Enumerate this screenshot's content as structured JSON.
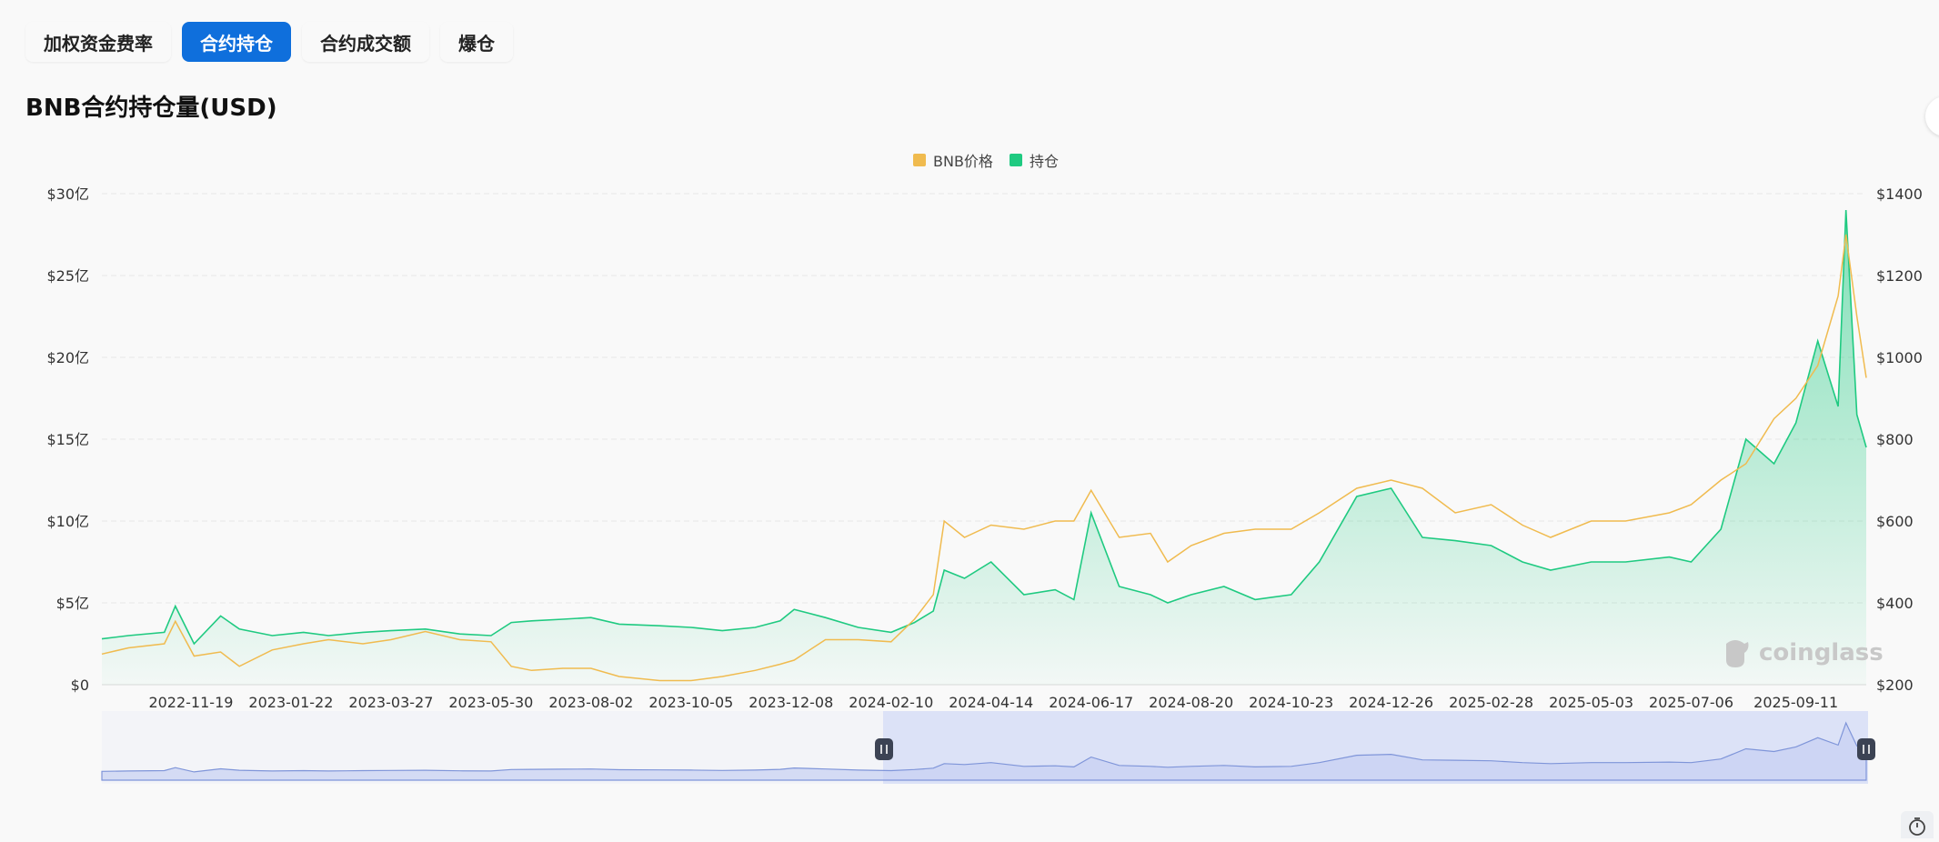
{
  "tabs": [
    {
      "label": "加权资金费率",
      "active": false
    },
    {
      "label": "合约持仓",
      "active": true
    },
    {
      "label": "合约成交额",
      "active": false
    },
    {
      "label": "爆仓",
      "active": false
    }
  ],
  "watermark": "coinglass",
  "colors": {
    "accent": "#0f6fdc",
    "price": "#f0bb4f",
    "oi": "#1fca81",
    "navigator": "#7f95d9"
  },
  "icons": [
    "coinglass-logo-icon",
    "pause-handle-icon",
    "timer-icon"
  ],
  "chart_data": {
    "type": "line",
    "title": "BNB合约持仓量(USD)",
    "legend": "top-center",
    "grid": true,
    "x_ticks": [
      "2022-11-19",
      "2023-01-22",
      "2023-03-27",
      "2023-05-30",
      "2023-08-02",
      "2023-10-05",
      "2023-12-08",
      "2024-02-10",
      "2024-04-14",
      "2024-06-17",
      "2024-08-20",
      "2024-10-23",
      "2024-12-26",
      "2025-02-28",
      "2025-05-03",
      "2025-07-06",
      "2025-09-11"
    ],
    "x_range": [
      "2022-09-23",
      "2025-10-26"
    ],
    "y_left": {
      "ticks": [
        "$0",
        "$5亿",
        "$10亿",
        "$15亿",
        "$20亿",
        "$25亿",
        "$30亿"
      ],
      "range": [
        0,
        30
      ]
    },
    "y_right": {
      "ticks": [
        "$200",
        "$400",
        "$600",
        "$800",
        "$1000",
        "$1200",
        "$1400"
      ],
      "range": [
        200,
        1400
      ]
    },
    "series": [
      {
        "name": "BNB价格",
        "axis": "right",
        "color": "#f0bb4f",
        "type": "line",
        "x": [
          "2022-09-23",
          "2022-10-10",
          "2022-11-02",
          "2022-11-09",
          "2022-11-21",
          "2022-12-08",
          "2022-12-20",
          "2023-01-10",
          "2023-01-30",
          "2023-02-15",
          "2023-03-09",
          "2023-03-27",
          "2023-04-18",
          "2023-05-10",
          "2023-05-30",
          "2023-06-12",
          "2023-06-25",
          "2023-07-15",
          "2023-08-02",
          "2023-08-20",
          "2023-09-15",
          "2023-10-05",
          "2023-10-25",
          "2023-11-15",
          "2023-12-01",
          "2023-12-10",
          "2023-12-30",
          "2024-01-20",
          "2024-02-10",
          "2024-02-25",
          "2024-03-08",
          "2024-03-15",
          "2024-03-28",
          "2024-04-14",
          "2024-05-05",
          "2024-05-25",
          "2024-06-06",
          "2024-06-17",
          "2024-07-05",
          "2024-07-25",
          "2024-08-05",
          "2024-08-20",
          "2024-09-10",
          "2024-09-30",
          "2024-10-23",
          "2024-11-10",
          "2024-12-04",
          "2024-12-26",
          "2025-01-15",
          "2025-02-05",
          "2025-02-28",
          "2025-03-20",
          "2025-04-07",
          "2025-05-03",
          "2025-05-25",
          "2025-06-22",
          "2025-07-06",
          "2025-07-25",
          "2025-08-10",
          "2025-08-28",
          "2025-09-11",
          "2025-09-25",
          "2025-10-08",
          "2025-10-13",
          "2025-10-20",
          "2025-10-26"
        ],
        "y": [
          275,
          290,
          300,
          355,
          270,
          280,
          245,
          285,
          300,
          310,
          300,
          310,
          330,
          310,
          305,
          245,
          235,
          240,
          240,
          220,
          210,
          210,
          220,
          235,
          250,
          260,
          310,
          310,
          305,
          360,
          420,
          600,
          560,
          590,
          580,
          600,
          600,
          675,
          560,
          570,
          500,
          540,
          570,
          580,
          580,
          620,
          680,
          700,
          680,
          620,
          640,
          590,
          560,
          600,
          600,
          620,
          640,
          700,
          740,
          850,
          900,
          980,
          1150,
          1300,
          1100,
          950
        ]
      },
      {
        "name": "持仓",
        "axis": "left",
        "color": "#1fca81",
        "type": "area",
        "x": [
          "2022-09-23",
          "2022-10-10",
          "2022-11-02",
          "2022-11-09",
          "2022-11-21",
          "2022-12-08",
          "2022-12-20",
          "2023-01-10",
          "2023-01-30",
          "2023-02-15",
          "2023-03-09",
          "2023-03-27",
          "2023-04-18",
          "2023-05-10",
          "2023-05-30",
          "2023-06-12",
          "2023-06-25",
          "2023-07-15",
          "2023-08-02",
          "2023-08-20",
          "2023-09-15",
          "2023-10-05",
          "2023-10-25",
          "2023-11-15",
          "2023-12-01",
          "2023-12-10",
          "2023-12-30",
          "2024-01-20",
          "2024-02-10",
          "2024-02-25",
          "2024-03-08",
          "2024-03-15",
          "2024-03-28",
          "2024-04-14",
          "2024-05-05",
          "2024-05-25",
          "2024-06-06",
          "2024-06-17",
          "2024-07-05",
          "2024-07-25",
          "2024-08-05",
          "2024-08-20",
          "2024-09-10",
          "2024-09-30",
          "2024-10-23",
          "2024-11-10",
          "2024-12-04",
          "2024-12-26",
          "2025-01-15",
          "2025-02-05",
          "2025-02-28",
          "2025-03-20",
          "2025-04-07",
          "2025-05-03",
          "2025-05-25",
          "2025-06-22",
          "2025-07-06",
          "2025-07-25",
          "2025-08-10",
          "2025-08-28",
          "2025-09-11",
          "2025-09-25",
          "2025-10-08",
          "2025-10-13",
          "2025-10-20",
          "2025-10-26"
        ],
        "y": [
          2.8,
          3.0,
          3.2,
          4.8,
          2.5,
          4.2,
          3.4,
          3.0,
          3.2,
          3.0,
          3.2,
          3.3,
          3.4,
          3.1,
          3.0,
          3.8,
          3.9,
          4.0,
          4.1,
          3.7,
          3.6,
          3.5,
          3.3,
          3.5,
          3.9,
          4.6,
          4.1,
          3.5,
          3.2,
          3.8,
          4.5,
          7.0,
          6.5,
          7.5,
          5.5,
          5.8,
          5.2,
          10.5,
          6.0,
          5.5,
          5.0,
          5.5,
          6.0,
          5.2,
          5.5,
          7.5,
          11.5,
          12.0,
          9.0,
          8.8,
          8.5,
          7.5,
          7.0,
          7.5,
          7.5,
          7.8,
          7.5,
          9.5,
          15.0,
          13.5,
          16.0,
          21.0,
          17.0,
          29.0,
          16.5,
          14.5
        ]
      }
    ]
  }
}
